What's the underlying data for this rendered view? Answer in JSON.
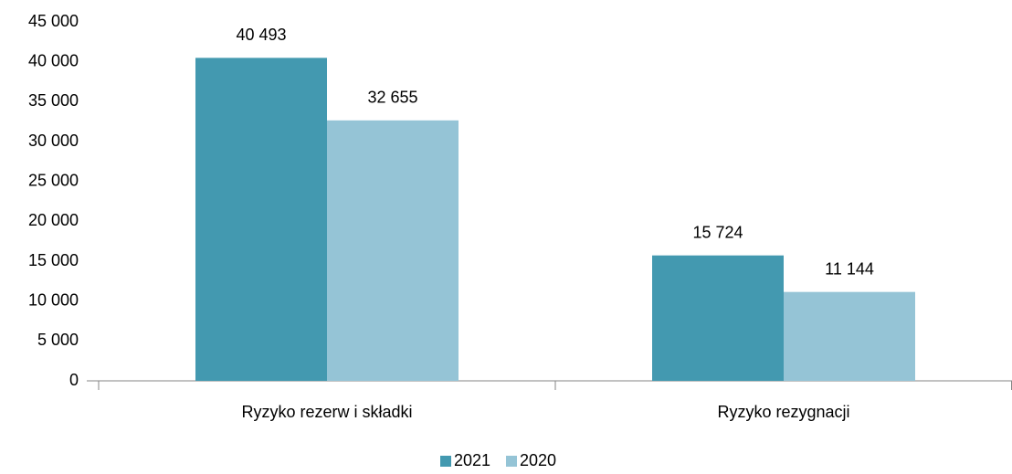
{
  "chart_data": {
    "type": "bar",
    "categories": [
      "Ryzyko rezerw i składki",
      "Ryzyko rezygnacji"
    ],
    "series": [
      {
        "name": "2021",
        "color": "#4399b0",
        "values": [
          40493,
          15724
        ],
        "value_labels": [
          "40 493",
          "15 724"
        ]
      },
      {
        "name": "2020",
        "color": "#95c4d6",
        "values": [
          32655,
          11144
        ],
        "value_labels": [
          "32 655",
          "11 144"
        ]
      }
    ],
    "ylim": [
      0,
      45000
    ],
    "yticks": [
      {
        "value": 0,
        "label": "0"
      },
      {
        "value": 5000,
        "label": "5 000"
      },
      {
        "value": 10000,
        "label": "10 000"
      },
      {
        "value": 15000,
        "label": "15 000"
      },
      {
        "value": 20000,
        "label": "20 000"
      },
      {
        "value": 25000,
        "label": "25 000"
      },
      {
        "value": 30000,
        "label": "30 000"
      },
      {
        "value": 35000,
        "label": "35 000"
      },
      {
        "value": 40000,
        "label": "40 000"
      },
      {
        "value": 45000,
        "label": "45 000"
      }
    ],
    "grid": false,
    "legend": "bottom"
  }
}
